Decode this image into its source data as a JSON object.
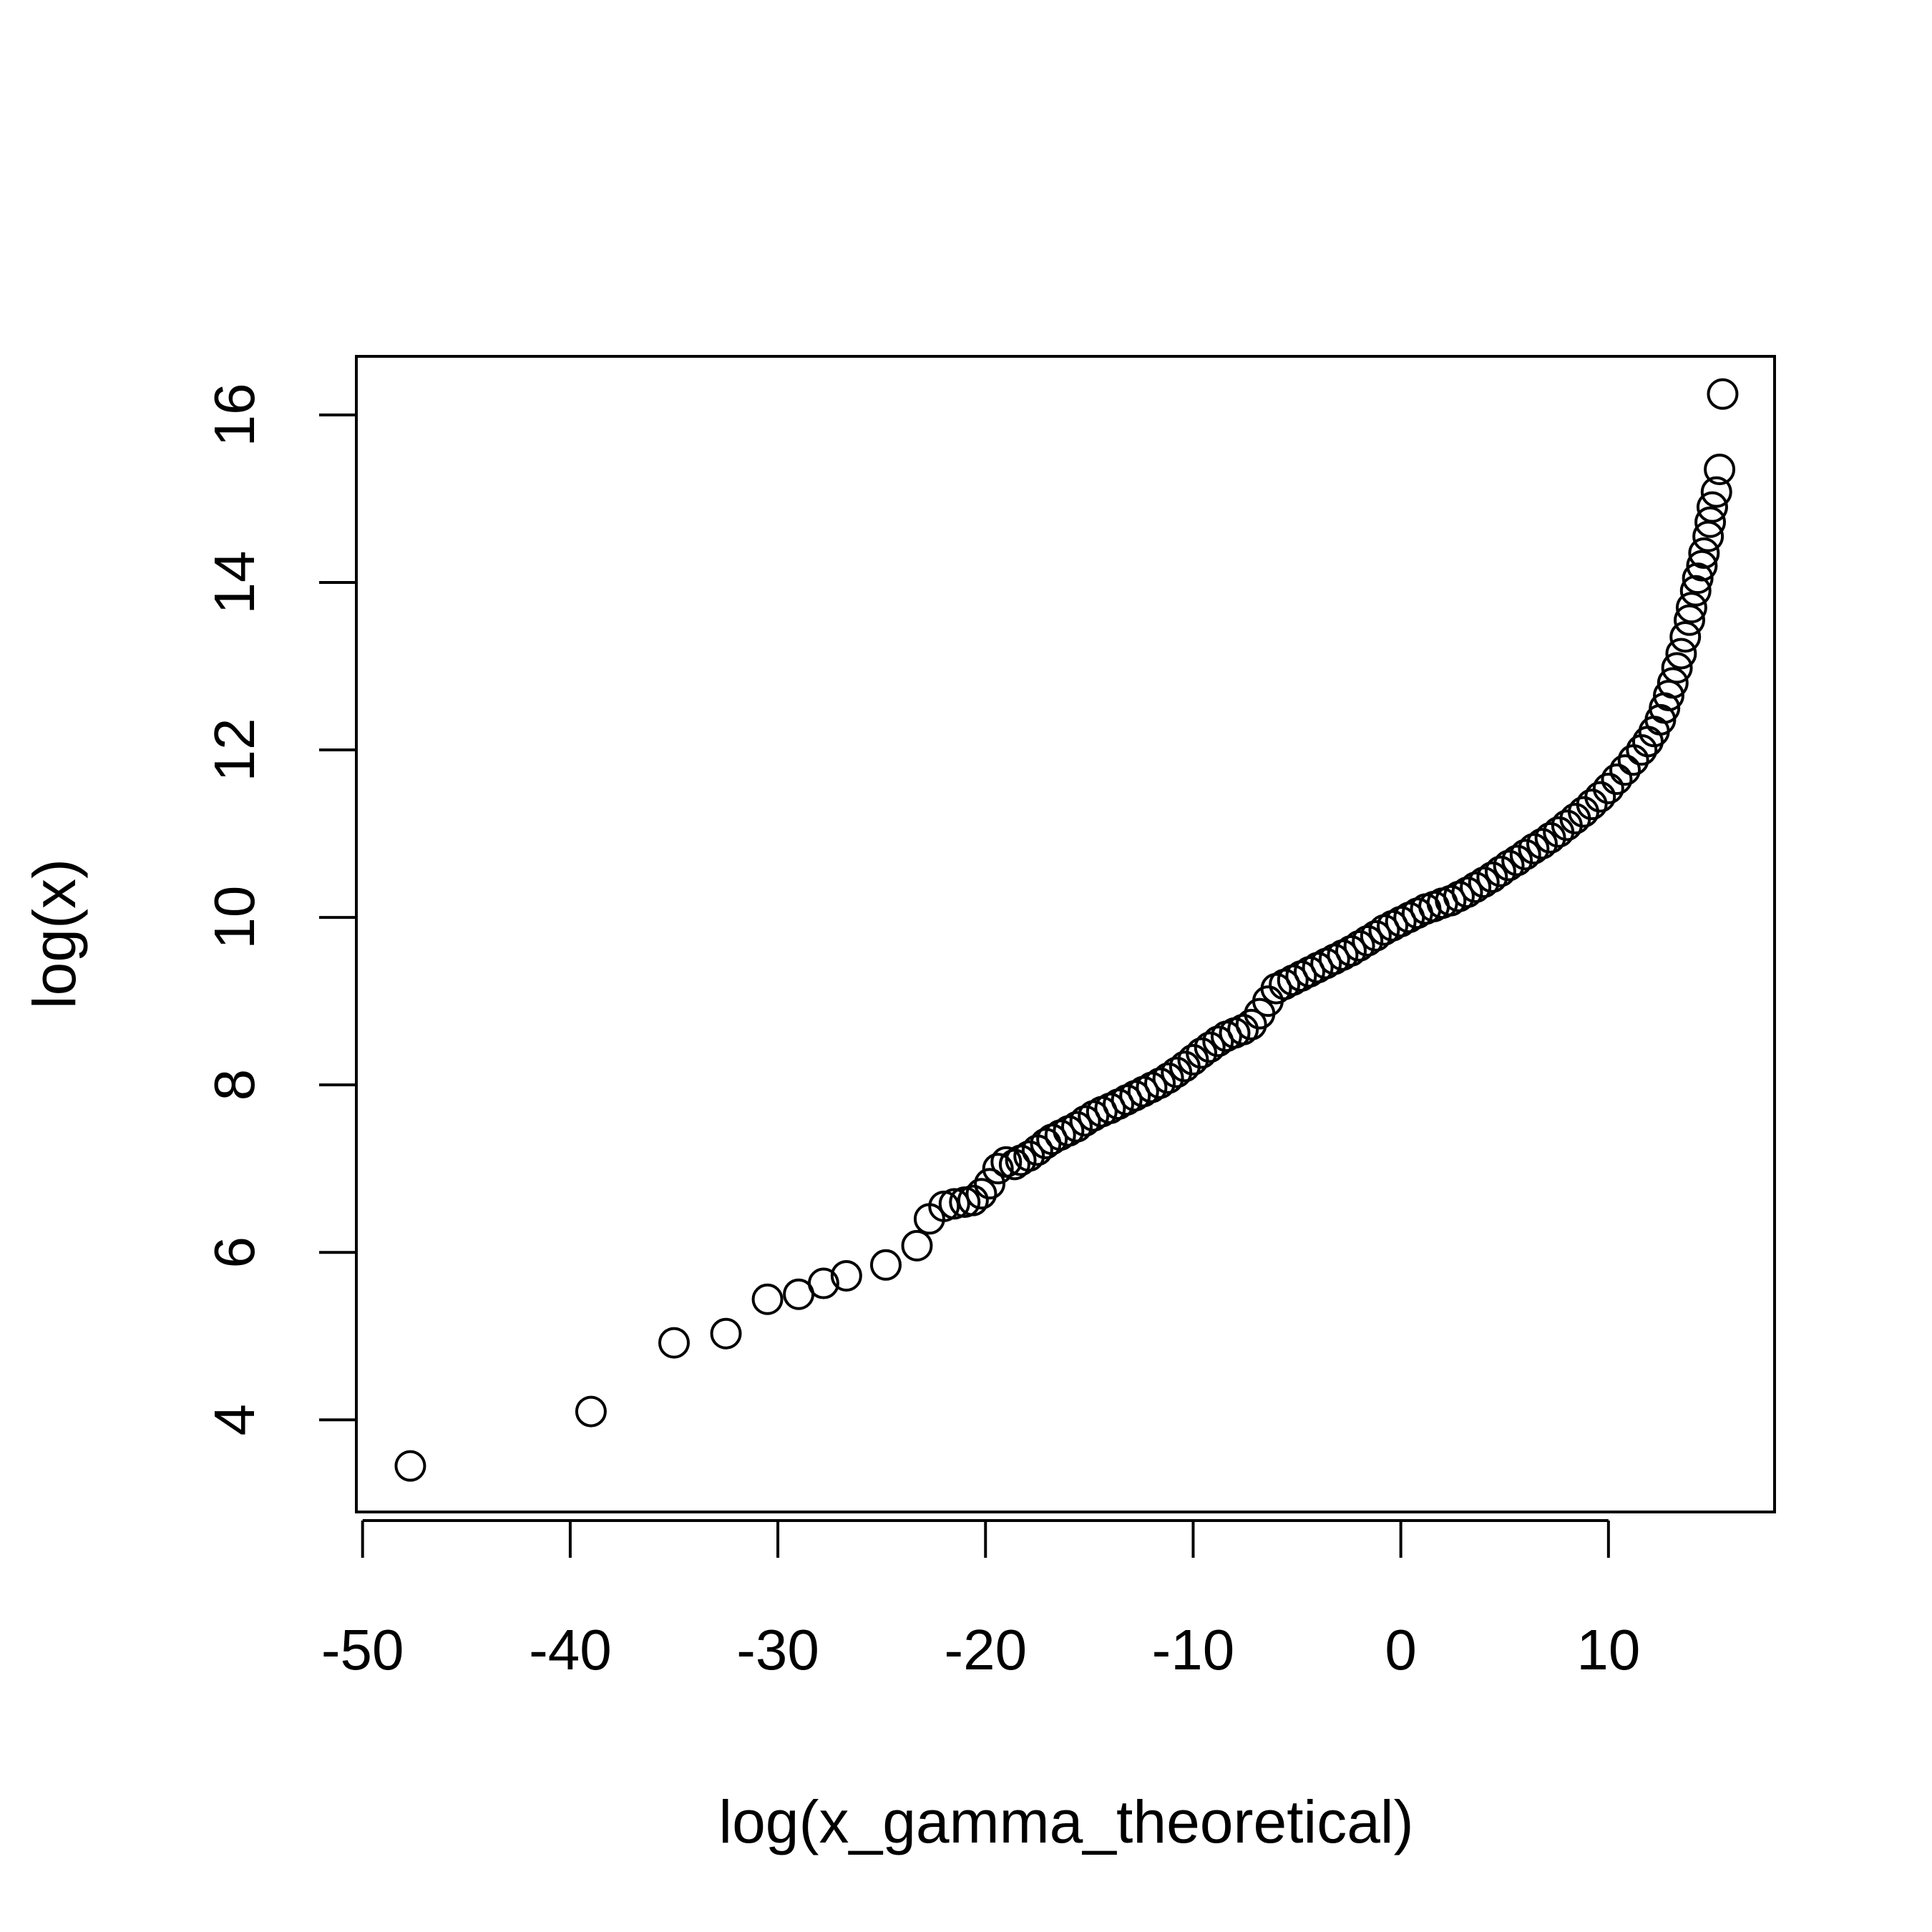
{
  "chart_data": {
    "type": "scatter",
    "title": "",
    "xlabel": "log(x_gamma_theoretical)",
    "ylabel": "log(x)",
    "xlim": [
      -50.3,
      18
    ],
    "ylim": [
      2.9,
      16.7
    ],
    "xticks": [
      -50,
      -40,
      -30,
      -20,
      -10,
      0,
      10
    ],
    "yticks": [
      4,
      6,
      8,
      10,
      12,
      14,
      16
    ],
    "xtick_labels": [
      "-50",
      "-40",
      "-30",
      "-20",
      "-10",
      "0",
      "10"
    ],
    "ytick_labels": [
      "4",
      "6",
      "8",
      "10",
      "12",
      "14",
      "16"
    ],
    "grid": false,
    "legend": "none",
    "marker": "open-circle",
    "series": [
      {
        "name": "",
        "x": [
          -47.7,
          -39.0,
          -35.0,
          -32.5,
          -30.5,
          -29.0,
          -27.8,
          -26.7,
          -24.8,
          -23.3,
          -22.7,
          -22.0,
          -21.5,
          -21.0,
          -20.6,
          -20.2,
          -19.8,
          -19.4,
          -19.0,
          -18.6,
          -18.3,
          -17.9,
          -17.5,
          -17.1,
          -16.8,
          -16.4,
          -16.0,
          -15.6,
          -15.2,
          -14.8,
          -14.4,
          -14.0,
          -13.6,
          -13.2,
          -12.8,
          -12.4,
          -12.0,
          -11.6,
          -11.2,
          -10.8,
          -10.4,
          -10.0,
          -9.6,
          -9.2,
          -8.8,
          -8.4,
          -8.0,
          -7.6,
          -7.2,
          -6.8,
          -6.4,
          -6.0,
          -5.6,
          -5.2,
          -4.8,
          -4.4,
          -4.0,
          -3.6,
          -3.2,
          -2.8,
          -2.4,
          -2.0,
          -1.6,
          -1.2,
          -0.8,
          -0.4,
          0.0,
          0.4,
          0.8,
          1.2,
          1.6,
          2.0,
          2.4,
          2.8,
          3.2,
          3.6,
          4.0,
          4.4,
          4.8,
          5.2,
          5.6,
          6.0,
          6.4,
          6.8,
          7.2,
          7.6,
          8.0,
          8.4,
          8.8,
          9.2,
          9.6,
          10.0,
          10.4,
          10.8,
          11.2,
          11.6,
          11.9,
          12.2,
          12.5,
          12.7,
          12.9,
          13.1,
          13.3,
          13.5,
          13.7,
          13.9,
          14.0,
          14.2,
          14.3,
          14.5,
          14.6,
          14.8,
          14.9,
          15.0,
          15.2,
          15.35,
          15.5
        ],
        "y": [
          3.45,
          4.1,
          4.92,
          5.03,
          5.44,
          5.5,
          5.63,
          5.72,
          5.85,
          6.08,
          6.4,
          6.55,
          6.58,
          6.6,
          6.62,
          6.7,
          6.82,
          7.0,
          7.08,
          7.05,
          7.1,
          7.15,
          7.22,
          7.3,
          7.35,
          7.4,
          7.45,
          7.5,
          7.57,
          7.63,
          7.68,
          7.72,
          7.77,
          7.82,
          7.87,
          7.92,
          7.97,
          8.02,
          8.08,
          8.15,
          8.22,
          8.3,
          8.38,
          8.45,
          8.52,
          8.58,
          8.62,
          8.66,
          8.72,
          8.85,
          9.0,
          9.15,
          9.2,
          9.25,
          9.3,
          9.35,
          9.4,
          9.45,
          9.5,
          9.55,
          9.6,
          9.66,
          9.72,
          9.78,
          9.85,
          9.9,
          9.95,
          10.0,
          10.05,
          10.1,
          10.13,
          10.17,
          10.2,
          10.25,
          10.3,
          10.36,
          10.42,
          10.48,
          10.55,
          10.62,
          10.68,
          10.75,
          10.82,
          10.88,
          10.95,
          11.02,
          11.1,
          11.18,
          11.26,
          11.35,
          11.44,
          11.54,
          11.65,
          11.76,
          11.88,
          12.0,
          12.1,
          12.22,
          12.36,
          12.5,
          12.65,
          12.8,
          12.98,
          13.15,
          13.35,
          13.55,
          13.7,
          13.9,
          14.05,
          14.2,
          14.35,
          14.55,
          14.72,
          14.9,
          15.08,
          15.35,
          16.25
        ]
      }
    ]
  }
}
